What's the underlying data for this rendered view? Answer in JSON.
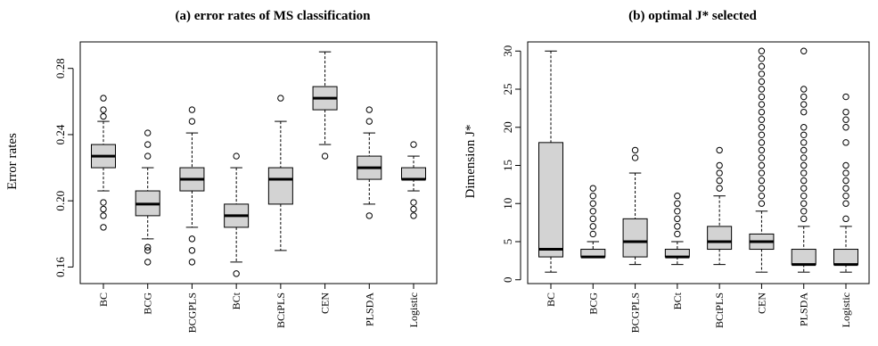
{
  "chart_data": [
    {
      "type": "box",
      "title": "(a) error rates of MS classification",
      "ylabel": "Error rates",
      "xlabel": "",
      "ylim": [
        0.15,
        0.296
      ],
      "yticks": [
        0.16,
        0.2,
        0.24,
        0.28
      ],
      "ytick_labels": [
        "0.16",
        "0.20",
        "0.24",
        "0.28"
      ],
      "grid": false,
      "categories": [
        "BC",
        "BCG",
        "BCGPLS",
        "BCt",
        "BCtPLS",
        "CEN",
        "PLSDA",
        "Logistic"
      ],
      "boxes": [
        {
          "category": "BC",
          "whisker_low": 0.206,
          "q1": 0.22,
          "median": 0.227,
          "q3": 0.234,
          "whisker_high": 0.248,
          "outliers": [
            0.184,
            0.191,
            0.195,
            0.199,
            0.251,
            0.255,
            0.262
          ]
        },
        {
          "category": "BCG",
          "whisker_low": 0.177,
          "q1": 0.191,
          "median": 0.198,
          "q3": 0.206,
          "whisker_high": 0.22,
          "outliers": [
            0.163,
            0.17,
            0.172,
            0.227,
            0.234,
            0.241
          ]
        },
        {
          "category": "BCGPLS",
          "whisker_low": 0.184,
          "q1": 0.206,
          "median": 0.213,
          "q3": 0.22,
          "whisker_high": 0.241,
          "outliers": [
            0.163,
            0.17,
            0.177,
            0.248,
            0.255
          ]
        },
        {
          "category": "BCt",
          "whisker_low": 0.163,
          "q1": 0.184,
          "median": 0.191,
          "q3": 0.198,
          "whisker_high": 0.22,
          "outliers": [
            0.156,
            0.227
          ]
        },
        {
          "category": "BCtPLS",
          "whisker_low": 0.17,
          "q1": 0.198,
          "median": 0.213,
          "q3": 0.22,
          "whisker_high": 0.248,
          "outliers": [
            0.262
          ]
        },
        {
          "category": "CEN",
          "whisker_low": 0.234,
          "q1": 0.255,
          "median": 0.262,
          "q3": 0.269,
          "whisker_high": 0.29,
          "outliers": [
            0.227
          ]
        },
        {
          "category": "PLSDA",
          "whisker_low": 0.198,
          "q1": 0.213,
          "median": 0.22,
          "q3": 0.227,
          "whisker_high": 0.241,
          "outliers": [
            0.191,
            0.248,
            0.255
          ]
        },
        {
          "category": "Logistic",
          "whisker_low": 0.206,
          "q1": 0.213,
          "median": 0.213,
          "q3": 0.22,
          "whisker_high": 0.227,
          "outliers": [
            0.191,
            0.195,
            0.199,
            0.234
          ]
        }
      ],
      "colors": {
        "box_fill": "#d3d3d3",
        "stroke": "#000000"
      }
    },
    {
      "type": "box",
      "title": "(b) optimal J* selected",
      "ylabel": "Dimension J*",
      "xlabel": "",
      "ylim": [
        -0.5,
        31.2
      ],
      "yticks": [
        0,
        5,
        10,
        15,
        20,
        25,
        30
      ],
      "ytick_labels": [
        "0",
        "5",
        "10",
        "15",
        "20",
        "25",
        "30"
      ],
      "grid": false,
      "categories": [
        "BC",
        "BCG",
        "BCGPLS",
        "BCt",
        "BCtPLS",
        "CEN",
        "PLSDA",
        "Logistic"
      ],
      "boxes": [
        {
          "category": "BC",
          "whisker_low": 1,
          "q1": 3,
          "median": 4,
          "q3": 18,
          "whisker_high": 30,
          "outliers": []
        },
        {
          "category": "BCG",
          "whisker_low": 3,
          "q1": 3,
          "median": 3,
          "q3": 4,
          "whisker_high": 5,
          "outliers": [
            6,
            7,
            8,
            9,
            10,
            11,
            12
          ]
        },
        {
          "category": "BCGPLS",
          "whisker_low": 2,
          "q1": 3,
          "median": 5,
          "q3": 8,
          "whisker_high": 14,
          "outliers": [
            16,
            17
          ]
        },
        {
          "category": "BCt",
          "whisker_low": 2,
          "q1": 3,
          "median": 3,
          "q3": 4,
          "whisker_high": 5,
          "outliers": [
            6,
            7,
            8,
            9,
            10,
            11
          ]
        },
        {
          "category": "BCtPLS",
          "whisker_low": 2,
          "q1": 4,
          "median": 5,
          "q3": 7,
          "whisker_high": 11,
          "outliers": [
            12,
            13,
            14,
            15,
            17
          ]
        },
        {
          "category": "CEN",
          "whisker_low": 1,
          "q1": 4,
          "median": 5,
          "q3": 6,
          "whisker_high": 9,
          "outliers": [
            10,
            11,
            12,
            13,
            14,
            15,
            16,
            17,
            18,
            19,
            20,
            21,
            22,
            23,
            24,
            25,
            26,
            27,
            28,
            29,
            30
          ]
        },
        {
          "category": "PLSDA",
          "whisker_low": 1,
          "q1": 2,
          "median": 2,
          "q3": 4,
          "whisker_high": 7,
          "outliers": [
            8,
            9,
            10,
            11,
            12,
            13,
            14,
            15,
            16,
            17,
            18,
            19,
            20,
            22,
            23,
            24,
            25,
            30
          ]
        },
        {
          "category": "Logistic",
          "whisker_low": 1,
          "q1": 2,
          "median": 2,
          "q3": 4,
          "whisker_high": 7,
          "outliers": [
            8,
            10,
            11,
            12,
            13,
            14,
            15,
            18,
            20,
            21,
            22,
            24
          ]
        }
      ],
      "colors": {
        "box_fill": "#d3d3d3",
        "stroke": "#000000"
      }
    }
  ]
}
